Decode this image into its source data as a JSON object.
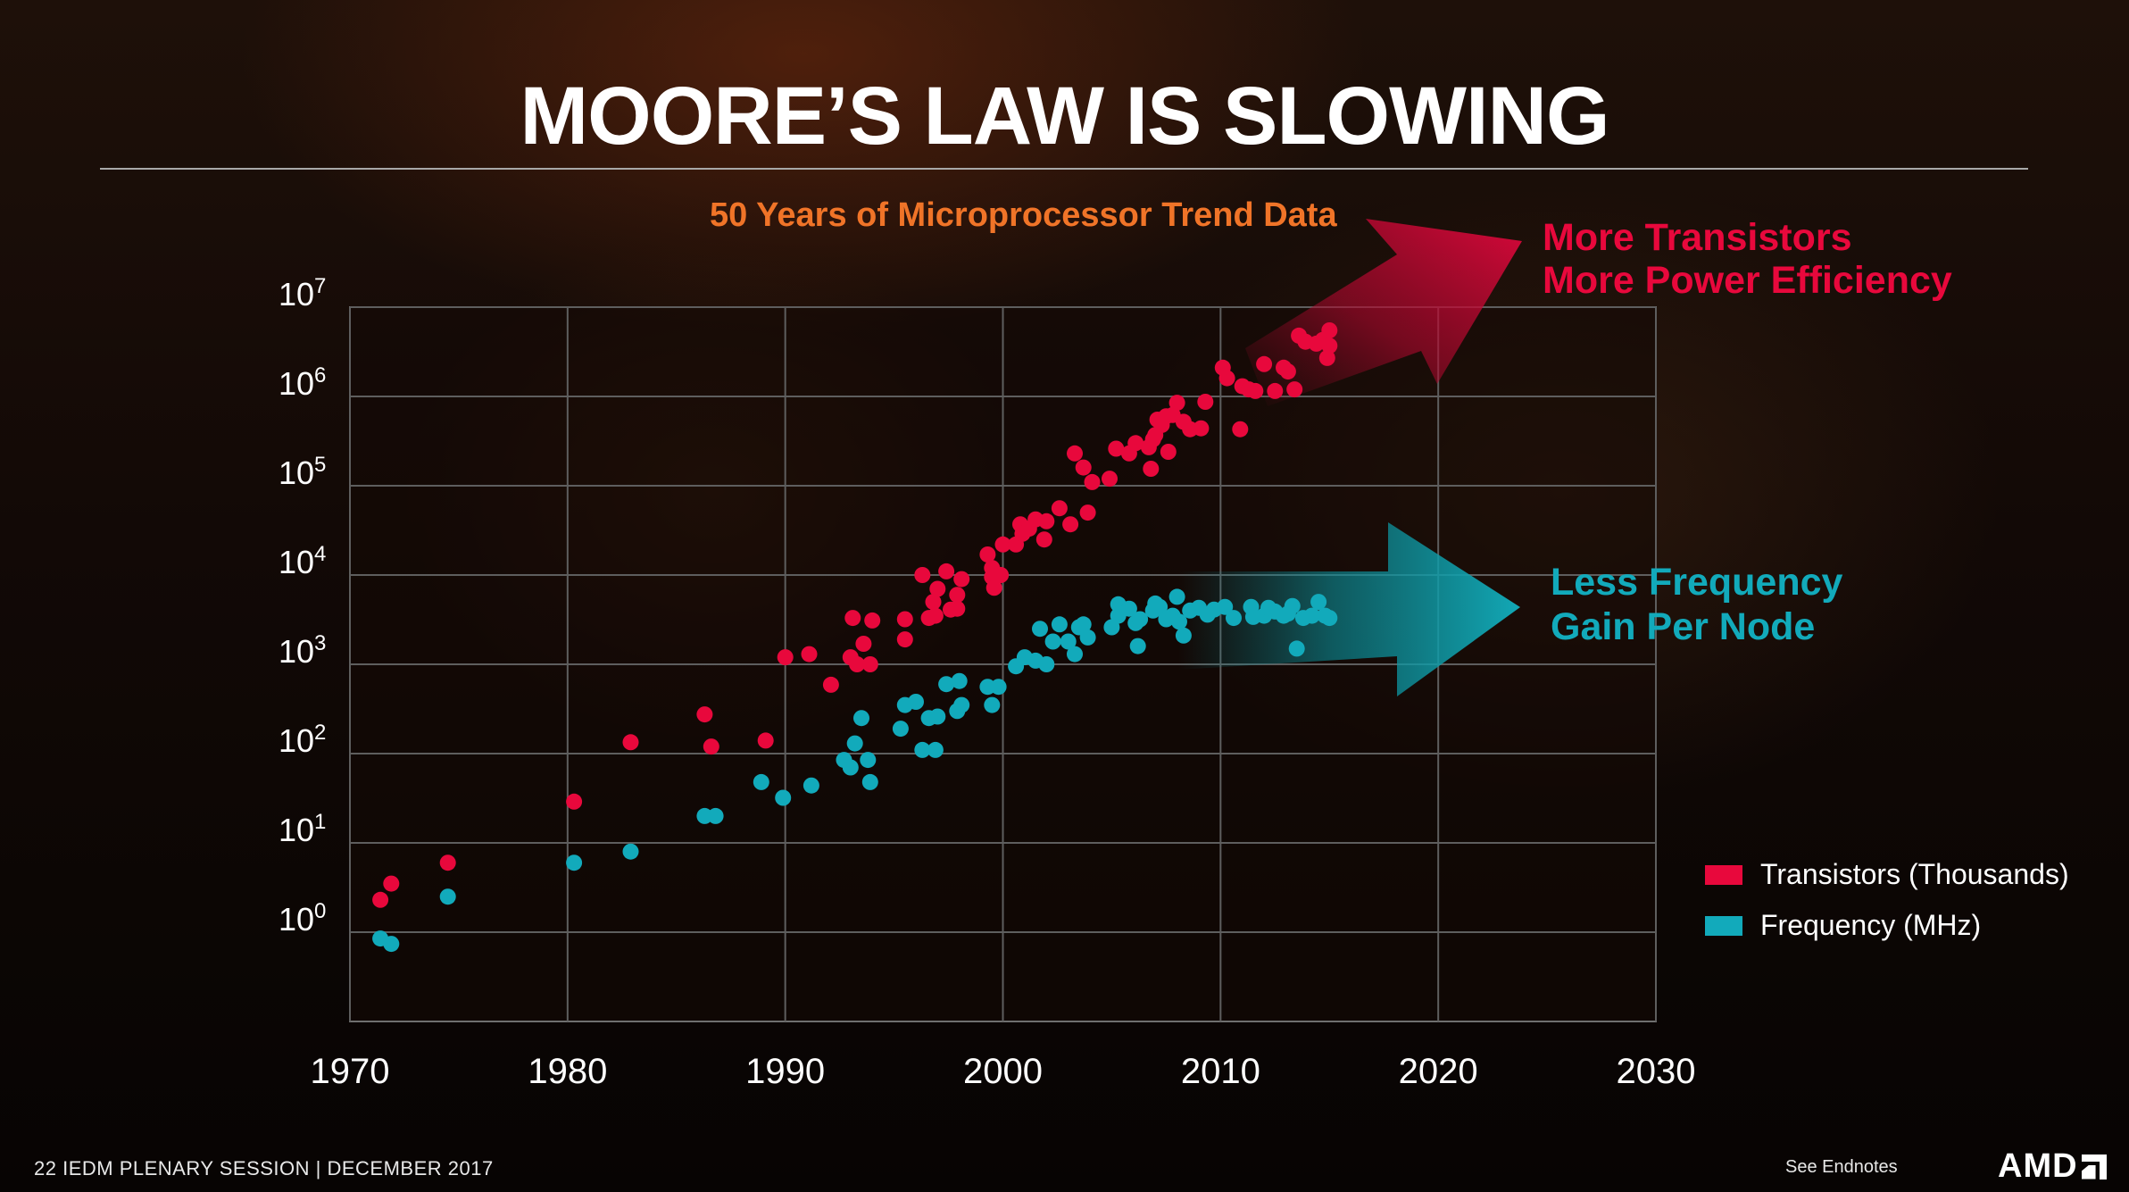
{
  "slide": {
    "title": "MOORE’S LAW IS SLOWING",
    "footer_left": "22  IEDM PLENARY SESSION |  DECEMBER 2017",
    "footer_right": "See Endnotes",
    "logo_text": "AMD"
  },
  "chart_data": {
    "type": "scatter",
    "title": "50 Years of Microprocessor Trend Data",
    "xlabel": "",
    "ylabel": "",
    "xlim": [
      1970,
      2030
    ],
    "ylim_log10": [
      -1,
      7
    ],
    "y_scale": "log",
    "x_ticks": [
      1970,
      1980,
      1990,
      2000,
      2010,
      2020,
      2030
    ],
    "y_ticks": [
      {
        "base": "10",
        "exp": "0",
        "value": 1
      },
      {
        "base": "10",
        "exp": "1",
        "value": 10
      },
      {
        "base": "10",
        "exp": "2",
        "value": 100
      },
      {
        "base": "10",
        "exp": "3",
        "value": 1000
      },
      {
        "base": "10",
        "exp": "4",
        "value": 10000
      },
      {
        "base": "10",
        "exp": "5",
        "value": 100000
      },
      {
        "base": "10",
        "exp": "6",
        "value": 1000000
      },
      {
        "base": "10",
        "exp": "7",
        "value": 10000000
      }
    ],
    "grid": true,
    "legend_position": "right",
    "series": [
      {
        "name": "Transistors (Thousands)",
        "color": "#e8083c",
        "points": [
          [
            1971.4,
            2.3
          ],
          [
            1971.9,
            3.5
          ],
          [
            1974.5,
            6
          ],
          [
            1980.3,
            29
          ],
          [
            1982.9,
            134
          ],
          [
            1986.3,
            275
          ],
          [
            1986.6,
            120
          ],
          [
            1989.1,
            140
          ],
          [
            1990.0,
            1200
          ],
          [
            1991.1,
            1300
          ],
          [
            1992.1,
            590
          ],
          [
            1993.0,
            1200
          ],
          [
            1993.1,
            3300
          ],
          [
            1993.3,
            1000
          ],
          [
            1993.6,
            1700
          ],
          [
            1993.9,
            1000
          ],
          [
            1994.0,
            3100
          ],
          [
            1995.5,
            3200
          ],
          [
            1995.5,
            1900
          ],
          [
            1996.3,
            10000
          ],
          [
            1996.6,
            3300
          ],
          [
            1996.8,
            5000
          ],
          [
            1996.9,
            3500
          ],
          [
            1997.0,
            7000
          ],
          [
            1997.4,
            11000
          ],
          [
            1997.6,
            4100
          ],
          [
            1997.9,
            4200
          ],
          [
            1997.9,
            6000
          ],
          [
            1998.1,
            9000
          ],
          [
            1999.3,
            17000
          ],
          [
            1999.5,
            9500
          ],
          [
            1999.5,
            12000
          ],
          [
            1999.6,
            7200
          ],
          [
            1999.9,
            10000
          ],
          [
            2000.0,
            22000
          ],
          [
            2000.6,
            22000
          ],
          [
            2000.8,
            37000
          ],
          [
            2000.9,
            29000
          ],
          [
            2001.2,
            33000
          ],
          [
            2001.5,
            42000
          ],
          [
            2001.9,
            25000
          ],
          [
            2002.0,
            40000
          ],
          [
            2002.6,
            56000
          ],
          [
            2003.1,
            37000
          ],
          [
            2003.3,
            230000
          ],
          [
            2003.7,
            160000
          ],
          [
            2003.9,
            50000
          ],
          [
            2004.1,
            110000
          ],
          [
            2004.9,
            120000
          ],
          [
            2005.2,
            260000
          ],
          [
            2005.8,
            230000
          ],
          [
            2006.1,
            300000
          ],
          [
            2006.7,
            270000
          ],
          [
            2006.8,
            155000
          ],
          [
            2006.9,
            330000
          ],
          [
            2007.0,
            370000
          ],
          [
            2007.1,
            550000
          ],
          [
            2007.3,
            480000
          ],
          [
            2007.5,
            600000
          ],
          [
            2007.6,
            240000
          ],
          [
            2007.8,
            620000
          ],
          [
            2008.0,
            850000
          ],
          [
            2008.3,
            520000
          ],
          [
            2008.6,
            430000
          ],
          [
            2009.1,
            440000
          ],
          [
            2009.3,
            870000
          ],
          [
            2010.1,
            2100000
          ],
          [
            2010.3,
            1600000
          ],
          [
            2010.9,
            430000
          ],
          [
            2011.0,
            1300000
          ],
          [
            2011.3,
            1200000
          ],
          [
            2011.6,
            1150000
          ],
          [
            2012.0,
            2300000
          ],
          [
            2012.5,
            1150000
          ],
          [
            2012.9,
            2100000
          ],
          [
            2013.1,
            1900000
          ],
          [
            2013.4,
            1200000
          ],
          [
            2013.6,
            4800000
          ],
          [
            2013.9,
            4100000
          ],
          [
            2014.4,
            3900000
          ],
          [
            2014.7,
            4300000
          ],
          [
            2014.9,
            2700000
          ],
          [
            2015.0,
            5500000
          ],
          [
            2015.0,
            3700000
          ]
        ]
      },
      {
        "name": "Frequency (MHz)",
        "color": "#12aabb",
        "points": [
          [
            1971.4,
            0.85
          ],
          [
            1971.9,
            0.74
          ],
          [
            1974.5,
            2.5
          ],
          [
            1980.3,
            6
          ],
          [
            1982.9,
            8
          ],
          [
            1986.3,
            20
          ],
          [
            1986.8,
            20
          ],
          [
            1988.9,
            48
          ],
          [
            1989.9,
            32
          ],
          [
            1991.2,
            44
          ],
          [
            1992.7,
            85
          ],
          [
            1993.0,
            70
          ],
          [
            1993.2,
            130
          ],
          [
            1993.5,
            250
          ],
          [
            1993.8,
            85
          ],
          [
            1993.9,
            48
          ],
          [
            1995.3,
            190
          ],
          [
            1995.5,
            350
          ],
          [
            1996.0,
            380
          ],
          [
            1996.3,
            110
          ],
          [
            1996.6,
            250
          ],
          [
            1996.9,
            110
          ],
          [
            1997.0,
            260
          ],
          [
            1997.4,
            600
          ],
          [
            1997.9,
            300
          ],
          [
            1998.0,
            650
          ],
          [
            1998.1,
            350
          ],
          [
            1999.3,
            560
          ],
          [
            1999.5,
            350
          ],
          [
            1999.8,
            560
          ],
          [
            2000.6,
            950
          ],
          [
            2001.0,
            1200
          ],
          [
            2001.5,
            1100
          ],
          [
            2001.7,
            2500
          ],
          [
            2002.0,
            1000
          ],
          [
            2002.3,
            1800
          ],
          [
            2002.6,
            2800
          ],
          [
            2003.0,
            1800
          ],
          [
            2003.3,
            1300
          ],
          [
            2003.5,
            2600
          ],
          [
            2003.7,
            2800
          ],
          [
            2003.9,
            2000
          ],
          [
            2005.0,
            2600
          ],
          [
            2005.3,
            3500
          ],
          [
            2005.3,
            4700
          ],
          [
            2005.8,
            4200
          ],
          [
            2006.1,
            2900
          ],
          [
            2006.2,
            1600
          ],
          [
            2006.3,
            3200
          ],
          [
            2006.9,
            4000
          ],
          [
            2007.0,
            4800
          ],
          [
            2007.2,
            4400
          ],
          [
            2007.5,
            3200
          ],
          [
            2007.8,
            3500
          ],
          [
            2008.0,
            5700
          ],
          [
            2008.1,
            3000
          ],
          [
            2008.3,
            2100
          ],
          [
            2008.6,
            4000
          ],
          [
            2009.0,
            4300
          ],
          [
            2009.4,
            3600
          ],
          [
            2009.7,
            4100
          ],
          [
            2010.2,
            4400
          ],
          [
            2010.6,
            3300
          ],
          [
            2011.4,
            4400
          ],
          [
            2011.5,
            3400
          ],
          [
            2012.0,
            3500
          ],
          [
            2012.2,
            4300
          ],
          [
            2012.5,
            3900
          ],
          [
            2012.9,
            3500
          ],
          [
            2013.1,
            3700
          ],
          [
            2013.3,
            4500
          ],
          [
            2013.5,
            1500
          ],
          [
            2013.8,
            3300
          ],
          [
            2014.2,
            3500
          ],
          [
            2014.5,
            5000
          ],
          [
            2014.8,
            3500
          ],
          [
            2015.0,
            3300
          ]
        ]
      }
    ],
    "annotations": [
      {
        "id": "transistors",
        "lines": [
          "More Transistors",
          "More Power Efficiency"
        ],
        "color": "#e8083c"
      },
      {
        "id": "frequency",
        "lines": [
          "Less Frequency",
          "Gain Per Node"
        ],
        "color": "#12aabb"
      }
    ]
  }
}
